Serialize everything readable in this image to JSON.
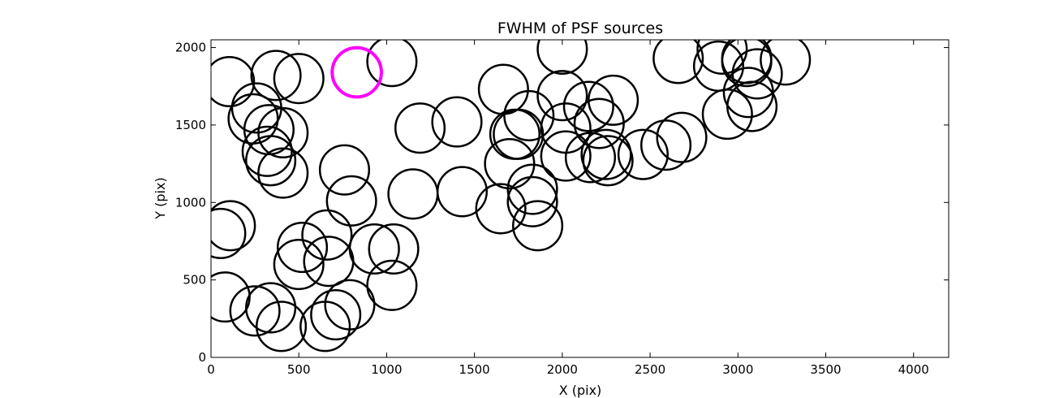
{
  "chart_data": {
    "type": "scatter",
    "title": "FWHM of PSF sources",
    "xlabel": "X (pix)",
    "ylabel": "Y (pix)",
    "xlim": [
      0,
      4200
    ],
    "ylim": [
      0,
      2050
    ],
    "xticks": [
      "0",
      "500",
      "1000",
      "1500",
      "2000",
      "2500",
      "3000",
      "3500",
      "4000"
    ],
    "yticks": [
      "0",
      "500",
      "1000",
      "1500",
      "2000"
    ],
    "grid": false,
    "marker": "open-circle",
    "marker_color": "#000000",
    "highlight_color": "#ff00ff",
    "circle_radius_x": 140,
    "series": [
      {
        "points": [
          [
            105,
            1780
          ],
          [
            370,
            1820
          ],
          [
            500,
            1800
          ],
          [
            260,
            1610
          ],
          [
            240,
            1540
          ],
          [
            330,
            1470
          ],
          [
            410,
            1450
          ],
          [
            320,
            1330
          ],
          [
            340,
            1270
          ],
          [
            410,
            1190
          ],
          [
            760,
            1210
          ],
          [
            800,
            1010
          ],
          [
            1030,
            1910
          ],
          [
            1190,
            1480
          ],
          [
            1400,
            1520
          ],
          [
            1150,
            1055
          ],
          [
            1430,
            1070
          ],
          [
            1665,
            1730
          ],
          [
            1810,
            1560
          ],
          [
            1730,
            1440
          ],
          [
            1750,
            1440
          ],
          [
            1700,
            1250
          ],
          [
            1650,
            960
          ],
          [
            1830,
            1085
          ],
          [
            1830,
            1005
          ],
          [
            1860,
            850
          ],
          [
            2000,
            1990
          ],
          [
            2000,
            1690
          ],
          [
            2020,
            1480
          ],
          [
            2020,
            1300
          ],
          [
            2150,
            1620
          ],
          [
            2210,
            1510
          ],
          [
            2290,
            1660
          ],
          [
            2160,
            1290
          ],
          [
            2250,
            1310
          ],
          [
            2260,
            1270
          ],
          [
            2460,
            1310
          ],
          [
            2590,
            1370
          ],
          [
            2680,
            1420
          ],
          [
            2660,
            1930
          ],
          [
            2910,
            1990
          ],
          [
            2890,
            1880
          ],
          [
            2940,
            1570
          ],
          [
            3050,
            1930
          ],
          [
            3050,
            1910
          ],
          [
            3060,
            1710
          ],
          [
            3080,
            1620
          ],
          [
            3110,
            1830
          ],
          [
            3270,
            1920
          ],
          [
            55,
            800
          ],
          [
            110,
            850
          ],
          [
            520,
            710
          ],
          [
            500,
            600
          ],
          [
            660,
            790
          ],
          [
            670,
            620
          ],
          [
            930,
            700
          ],
          [
            1040,
            700
          ],
          [
            1030,
            465
          ],
          [
            80,
            390
          ],
          [
            250,
            300
          ],
          [
            340,
            320
          ],
          [
            400,
            200
          ],
          [
            650,
            200
          ],
          [
            710,
            275
          ],
          [
            790,
            340
          ]
        ]
      }
    ],
    "highlighted_point": [
      830,
      1840
    ]
  }
}
